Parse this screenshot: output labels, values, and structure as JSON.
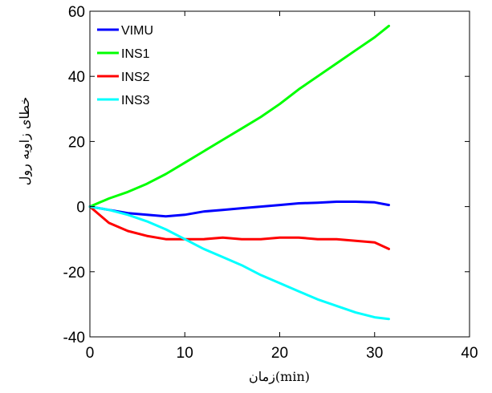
{
  "chart_data": {
    "type": "line",
    "title": "",
    "xlabel": "زمان(min)",
    "ylabel": "خطای زاویه رول",
    "xlim": [
      0,
      40
    ],
    "ylim": [
      -40,
      60
    ],
    "xticks": [
      0,
      10,
      20,
      30,
      40
    ],
    "yticks": [
      -40,
      -20,
      0,
      20,
      40,
      60
    ],
    "grid": false,
    "legend_position": "top-left",
    "x": [
      0,
      2,
      4,
      6,
      8,
      10,
      12,
      14,
      16,
      18,
      20,
      22,
      24,
      26,
      28,
      30,
      31.5
    ],
    "series": [
      {
        "name": "VIMU",
        "color": "#0000ff",
        "values": [
          0,
          -1,
          -2,
          -2.5,
          -3,
          -2.5,
          -1.5,
          -1,
          -0.5,
          0,
          0.5,
          1,
          1.2,
          1.5,
          1.5,
          1.3,
          0.5
        ]
      },
      {
        "name": "INS1",
        "color": "#00ff00",
        "values": [
          0,
          2.5,
          4.5,
          7,
          10,
          13.5,
          17,
          20.5,
          24,
          27.5,
          31.5,
          36,
          40,
          44,
          48,
          52,
          55.5
        ]
      },
      {
        "name": "INS2",
        "color": "#ff0000",
        "values": [
          0,
          -5,
          -7.5,
          -9,
          -10,
          -10,
          -10,
          -9.5,
          -10,
          -10,
          -9.5,
          -9.5,
          -10,
          -10,
          -10.5,
          -11,
          -13
        ]
      },
      {
        "name": "INS3",
        "color": "#00ffff",
        "values": [
          0,
          -1,
          -2.5,
          -4.5,
          -7,
          -10,
          -13,
          -15.5,
          -18,
          -21,
          -23.5,
          -26,
          -28.5,
          -30.5,
          -32.5,
          -34,
          -34.5
        ]
      }
    ]
  }
}
